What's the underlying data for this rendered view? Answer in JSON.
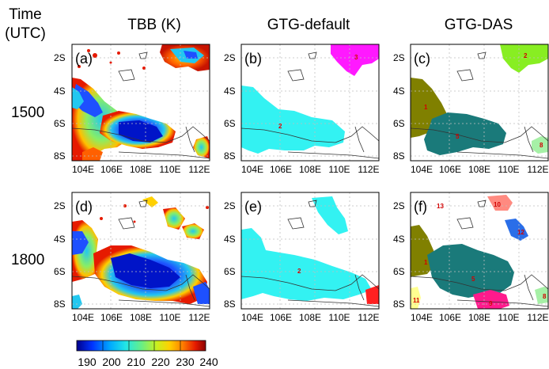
{
  "header": {
    "time_label": "Time",
    "time_unit": "(UTC)",
    "col1": "TBB (K)",
    "col2": "GTG-default",
    "col3": "GTG-DAS"
  },
  "rows": [
    "1500",
    "1800"
  ],
  "axes": {
    "yticks": [
      "2S",
      "4S",
      "6S",
      "8S"
    ],
    "xticks": [
      "104E",
      "106E",
      "108E",
      "110E",
      "112E"
    ]
  },
  "panels": [
    "(a)",
    "(b)",
    "(c)",
    "(d)",
    "(e)",
    "(f)"
  ],
  "regions": {
    "b": [
      "3",
      "2"
    ],
    "c": [
      "2",
      "1",
      "5",
      "8"
    ],
    "e": [
      "2"
    ],
    "f": [
      "13",
      "10",
      "12",
      "1",
      "5",
      "11",
      "9",
      "8"
    ]
  },
  "colorbar": {
    "ticks": [
      "190",
      "200",
      "210",
      "220",
      "230",
      "240"
    ],
    "colors": [
      "#00008c",
      "#0033ff",
      "#00aaff",
      "#22e6e6",
      "#66ee88",
      "#c8f020",
      "#ffd000",
      "#ff8000",
      "#e61a00",
      "#8b0000"
    ]
  },
  "colors": {
    "gtg_default_cyan": "#33f2f2",
    "gtg_default_magenta": "#ff19ff",
    "gtg_default_red": "#ff2020",
    "das_olive": "#808000",
    "das_lime": "#88ee22",
    "das_teal": "#1a7a7a",
    "das_lightgreen": "#a6f0a6",
    "das_salmon": "#ff8a80",
    "das_blue": "#2a6ee8",
    "das_yellow": "#ffff90",
    "das_pink": "#ff1a8c"
  }
}
